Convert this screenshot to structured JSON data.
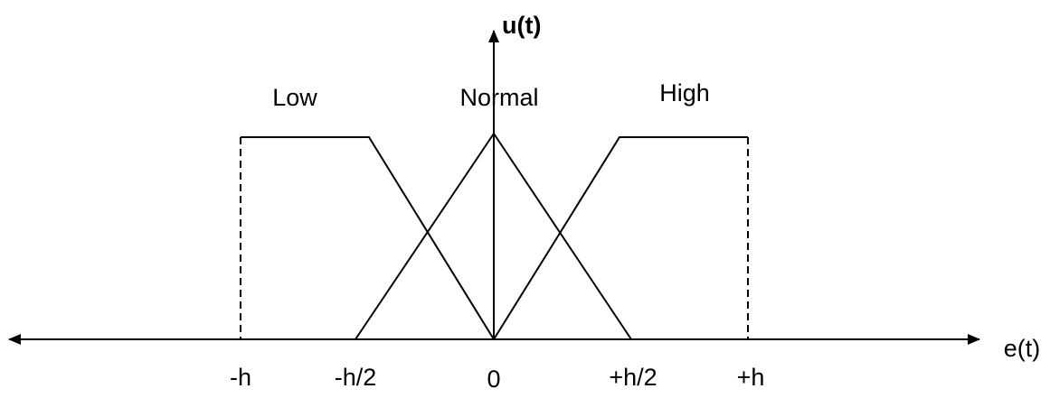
{
  "diagram": {
    "axes": {
      "y_label": "u(t)",
      "x_label": "e(t)"
    },
    "sets": [
      {
        "label": "Low"
      },
      {
        "label": "Normal"
      },
      {
        "label": "High"
      }
    ],
    "x_ticks": [
      "-h",
      "-h/2",
      "0",
      "+h/2",
      "+h"
    ]
  }
}
